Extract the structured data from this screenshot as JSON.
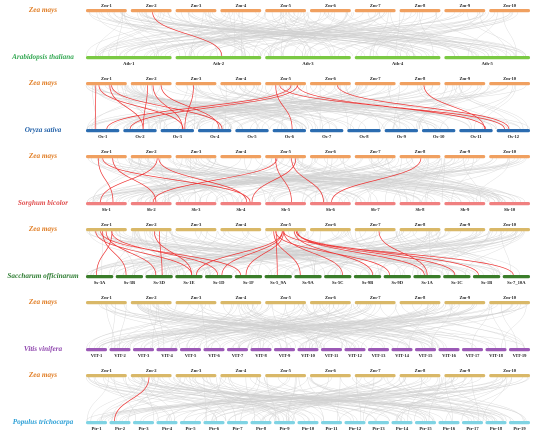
{
  "colors": {
    "background_link": "#cfcfcf",
    "highlight_link": "#ee3333",
    "maize_label": "#e07b21"
  },
  "panels": [
    {
      "top": {
        "species": "Zea mays",
        "bar_color": "#f0a060",
        "chromosomes": [
          "Zm-1",
          "Zm-2",
          "Zm-3",
          "Zm-4",
          "Zm-5",
          "Zm-6",
          "Zm-7",
          "Zm-8",
          "Zm-9",
          "Zm-10"
        ]
      },
      "bottom": {
        "species": "Arabidopsis thaliana",
        "label_color": "#34a853",
        "bar_color": "#7ac943",
        "chromosomes": [
          "Ath-1",
          "Ath-2",
          "Ath-3",
          "Ath-4",
          "Ath-5"
        ]
      },
      "red_links": [
        [
          1,
          1
        ]
      ]
    },
    {
      "top": {
        "species": "Zea mays",
        "bar_color": "#f0a060",
        "chromosomes": [
          "Zm-1",
          "Zm-2",
          "Zm-3",
          "Zm-4",
          "Zm-5",
          "Zm-6",
          "Zm-7",
          "Zm-8",
          "Zm-9",
          "Zm-10"
        ]
      },
      "bottom": {
        "species": "Oryza sativa",
        "label_color": "#1f5fa8",
        "bar_color": "#2b6cb0",
        "chromosomes": [
          "Os-1",
          "Os-2",
          "Os-3",
          "Os-4",
          "Os-5",
          "Os-6",
          "Os-7",
          "Os-8",
          "Os-9",
          "Os-10",
          "Os-11",
          "Os-12"
        ]
      },
      "red_links": [
        [
          0,
          0
        ],
        [
          0,
          1
        ],
        [
          0,
          2
        ],
        [
          0,
          3
        ],
        [
          1,
          1
        ],
        [
          1,
          2
        ],
        [
          1,
          3
        ],
        [
          2,
          2
        ],
        [
          4,
          0
        ],
        [
          4,
          1
        ],
        [
          4,
          5
        ],
        [
          4,
          10
        ],
        [
          4,
          11
        ],
        [
          5,
          11
        ],
        [
          7,
          10
        ]
      ]
    },
    {
      "top": {
        "species": "Zea mays",
        "bar_color": "#f0a060",
        "chromosomes": [
          "Zm-1",
          "Zm-2",
          "Zm-3",
          "Zm-4",
          "Zm-5",
          "Zm-6",
          "Zm-7",
          "Zm-8",
          "Zm-9",
          "Zm-10"
        ]
      },
      "bottom": {
        "species": "Sorghum bicolor",
        "label_color": "#e04e4e",
        "bar_color": "#f08080",
        "chromosomes": [
          "Sb-1",
          "Sb-2",
          "Sb-3",
          "Sb-4",
          "Sb-5",
          "Sb-6",
          "Sb-7",
          "Sb-8",
          "Sb-9",
          "Sb-10"
        ]
      },
      "red_links": [
        [
          0,
          0
        ],
        [
          0,
          1
        ],
        [
          0,
          3
        ],
        [
          1,
          0
        ],
        [
          1,
          3
        ],
        [
          4,
          3
        ],
        [
          4,
          4
        ],
        [
          4,
          5
        ],
        [
          4,
          1
        ],
        [
          7,
          5
        ]
      ]
    },
    {
      "top": {
        "species": "Zea mays",
        "bar_color": "#d9b868",
        "chromosomes": [
          "Zm-1",
          "Zm-2",
          "Zm-3",
          "Zm-4",
          "Zm-5",
          "Zm-6",
          "Zm-7",
          "Zm-8",
          "Zm-9",
          "Zm-10"
        ]
      },
      "bottom": {
        "species": "Saccharum officinarum",
        "label_color": "#2e7d32",
        "bar_color": "#3a7d2a",
        "chromosomes": [
          "Ss-3A",
          "Ss-3B",
          "Ss-3D",
          "Ss-1E",
          "Ss-1D",
          "Ss-1F",
          "Ss-5_9A",
          "Ss-9A",
          "Ss-5C",
          "Ss-9B",
          "Ss-9D",
          "Ss-1A",
          "Ss-1C",
          "Ss-1B",
          "Ss-7_10A"
        ]
      },
      "red_links": [
        [
          0,
          0
        ],
        [
          0,
          1
        ],
        [
          0,
          2
        ],
        [
          0,
          3
        ],
        [
          0,
          4
        ],
        [
          0,
          5
        ],
        [
          1,
          2
        ],
        [
          1,
          3
        ],
        [
          4,
          3
        ],
        [
          4,
          4
        ],
        [
          4,
          5
        ],
        [
          4,
          6
        ],
        [
          4,
          7
        ],
        [
          4,
          8
        ],
        [
          4,
          9
        ],
        [
          4,
          10
        ],
        [
          4,
          11
        ],
        [
          4,
          12
        ],
        [
          4,
          13
        ],
        [
          4,
          14
        ],
        [
          6,
          11
        ]
      ]
    },
    {
      "top": {
        "species": "Zea mays",
        "bar_color": "#d9b868",
        "chromosomes": [
          "Zm-1",
          "Zm-2",
          "Zm-3",
          "Zm-4",
          "Zm-5",
          "Zm-6",
          "Zm-7",
          "Zm-8",
          "Zm-9",
          "Zm-10"
        ]
      },
      "bottom": {
        "species": "Vitis vinifera",
        "label_color": "#8e44ad",
        "bar_color": "#9b59b6",
        "chromosomes": [
          "VIT-1",
          "VIT-2",
          "VIT-3",
          "VIT-4",
          "VIT-5",
          "VIT-6",
          "VIT-7",
          "VIT-8",
          "VIT-9",
          "VIT-10",
          "VIT-11",
          "VIT-12",
          "VIT-13",
          "VIT-14",
          "VIT-15",
          "VIT-16",
          "VIT-17",
          "VIT-18",
          "VIT-19"
        ]
      },
      "red_links": []
    },
    {
      "top": {
        "species": "Zea mays",
        "bar_color": "#d9b868",
        "chromosomes": [
          "Zm-1",
          "Zm-2",
          "Zm-3",
          "Zm-4",
          "Zm-5",
          "Zm-6",
          "Zm-7",
          "Zm-8",
          "Zm-9",
          "Zm-10"
        ]
      },
      "bottom": {
        "species": "Populus trichocarpa",
        "label_color": "#2a9fd6",
        "bar_color": "#7fd3e3",
        "chromosomes": [
          "Ptr-1",
          "Ptr-2",
          "Ptr-3",
          "Ptr-4",
          "Ptr-5",
          "Ptr-6",
          "Ptr-7",
          "Ptr-8",
          "Ptr-9",
          "Ptr-10",
          "Ptr-11",
          "Ptr-12",
          "Ptr-13",
          "Ptr-14",
          "Ptr-15",
          "Ptr-16",
          "Ptr-17",
          "Ptr-18",
          "Ptr-19"
        ]
      },
      "red_links": [
        [
          1,
          1
        ]
      ]
    }
  ]
}
